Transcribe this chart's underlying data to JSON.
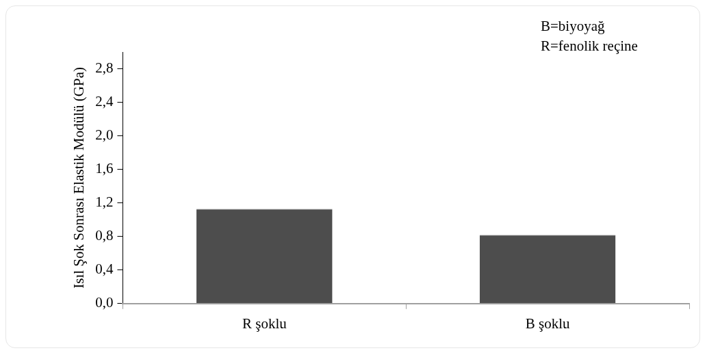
{
  "chart_data": {
    "type": "bar",
    "ylabel": "Isıl Şok Sonrası Elastik Modülü (GPa)",
    "categories": [
      "R şoklu",
      "B şoklu"
    ],
    "values": [
      1.13,
      0.82
    ],
    "color": "#4d4d4d",
    "ylim": [
      0,
      3.0
    ],
    "yticks": [
      {
        "value": 0,
        "label": "0,0"
      },
      {
        "value": 0.4,
        "label": "0,4"
      },
      {
        "value": 0.8,
        "label": "0,8"
      },
      {
        "value": 1.2,
        "label": "1,2"
      },
      {
        "value": 1.6,
        "label": "1,6"
      },
      {
        "value": 2.0,
        "label": "2,0"
      },
      {
        "value": 2.4,
        "label": "2,4"
      },
      {
        "value": 2.8,
        "label": "2,8"
      }
    ],
    "annotations": [
      "B=biyoyağ",
      "R=fenolik reçine"
    ],
    "grid": false,
    "legend": false
  }
}
